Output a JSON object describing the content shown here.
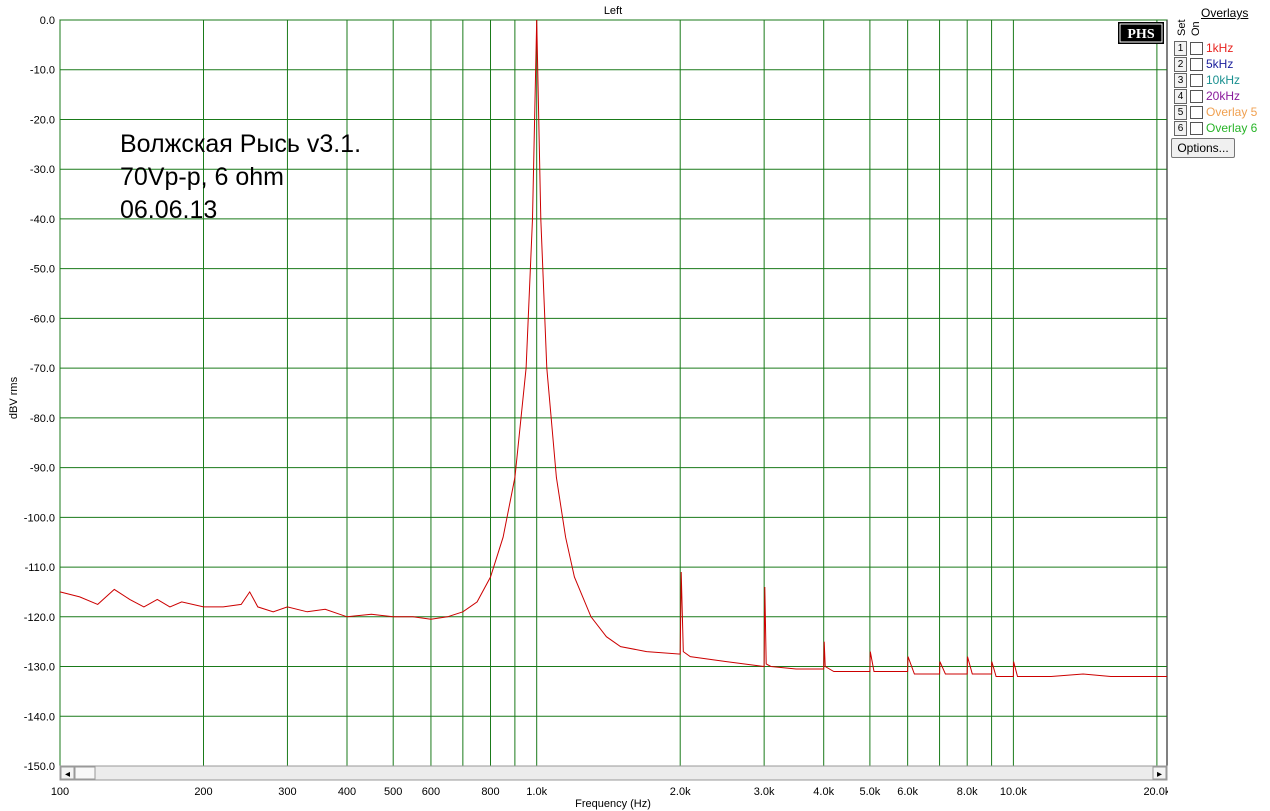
{
  "chart_data": {
    "type": "line",
    "title": "Left",
    "xlabel": "Frequency (Hz)",
    "ylabel": "dBV rms",
    "xscale": "log",
    "xlim": [
      100,
      21000
    ],
    "ylim": [
      -150,
      0
    ],
    "grid": true,
    "x_tick_labels": [
      "100",
      "200",
      "300",
      "400",
      "500",
      "600",
      "800",
      "1.0k",
      "2.0k",
      "3.0k",
      "4.0k",
      "5.0k",
      "6.0k",
      "8.0k",
      "10.0k",
      "20.0k"
    ],
    "x_tick_values": [
      100,
      200,
      300,
      400,
      500,
      600,
      800,
      1000,
      2000,
      3000,
      4000,
      5000,
      6000,
      8000,
      10000,
      20000
    ],
    "x_grid_values": [
      100,
      200,
      300,
      400,
      500,
      600,
      700,
      800,
      900,
      1000,
      2000,
      3000,
      4000,
      5000,
      6000,
      7000,
      8000,
      9000,
      10000,
      20000
    ],
    "y_tick_labels": [
      "0.0",
      "-10.0",
      "-20.0",
      "-30.0",
      "-40.0",
      "-50.0",
      "-60.0",
      "-70.0",
      "-80.0",
      "-90.0",
      "-100.0",
      "-110.0",
      "-120.0",
      "-130.0",
      "-140.0",
      "-150.0"
    ],
    "y_tick_values": [
      0,
      -10,
      -20,
      -30,
      -40,
      -50,
      -60,
      -70,
      -80,
      -90,
      -100,
      -110,
      -120,
      -130,
      -140,
      -150
    ],
    "annotation_lines": [
      "Волжская Рысь v3.1.",
      "70Vp-p, 6 ohm",
      "06.06.13"
    ],
    "series": [
      {
        "color": "#cc0000",
        "x": [
          100,
          110,
          120,
          130,
          140,
          150,
          160,
          170,
          180,
          200,
          220,
          240,
          250,
          260,
          280,
          300,
          330,
          360,
          400,
          450,
          500,
          550,
          600,
          650,
          700,
          750,
          800,
          850,
          900,
          950,
          980,
          1000,
          1020,
          1050,
          1100,
          1150,
          1200,
          1300,
          1400,
          1500,
          1700,
          2000,
          2010,
          2030,
          2100,
          2500,
          3000,
          3010,
          3030,
          3100,
          3500,
          4000,
          4010,
          4030,
          4200,
          5000,
          5010,
          5100,
          6000,
          6010,
          6200,
          7000,
          7010,
          7200,
          8000,
          8010,
          8200,
          9000,
          9010,
          9200,
          10000,
          10010,
          10200,
          12000,
          14000,
          16000,
          18000,
          20000,
          21000
        ],
        "y": [
          -115,
          -116,
          -117.5,
          -114.5,
          -116.5,
          -118,
          -116.5,
          -118,
          -117,
          -118,
          -118,
          -117.5,
          -115,
          -118,
          -119,
          -118,
          -119,
          -118.5,
          -120,
          -119.5,
          -120,
          -120,
          -120.5,
          -120,
          -119,
          -117,
          -112,
          -104,
          -92,
          -70,
          -40,
          0,
          -40,
          -70,
          -92,
          -104,
          -112,
          -120,
          -124,
          -126,
          -127,
          -127.5,
          -111,
          -127,
          -128,
          -129,
          -130,
          -114,
          -129.5,
          -130,
          -130.5,
          -130.5,
          -125,
          -130,
          -131,
          -131,
          -127,
          -131,
          -131,
          -128,
          -131.5,
          -131.5,
          -129,
          -131.5,
          -131.5,
          -128,
          -131.5,
          -131.5,
          -129,
          -132,
          -132,
          -129,
          -132,
          -132,
          -131.5,
          -132,
          -132,
          -132,
          -132
        ]
      }
    ]
  },
  "logo": {
    "text": "PHS"
  },
  "overlays": {
    "title": "Overlays",
    "set_label": "Set",
    "on_label": "On",
    "items": [
      {
        "num": "1",
        "label": "1kHz",
        "color": "#e8231f"
      },
      {
        "num": "2",
        "label": "5kHz",
        "color": "#1b1f9c"
      },
      {
        "num": "3",
        "label": "10kHz",
        "color": "#1a9090"
      },
      {
        "num": "4",
        "label": "20kHz",
        "color": "#8a1b9c"
      },
      {
        "num": "5",
        "label": "Overlay 5",
        "color": "#f0a050"
      },
      {
        "num": "6",
        "label": "Overlay 6",
        "color": "#28b428"
      }
    ],
    "options_label": "Options..."
  },
  "scrollbar": {
    "left_arrow": "◂",
    "right_arrow": "▸"
  }
}
